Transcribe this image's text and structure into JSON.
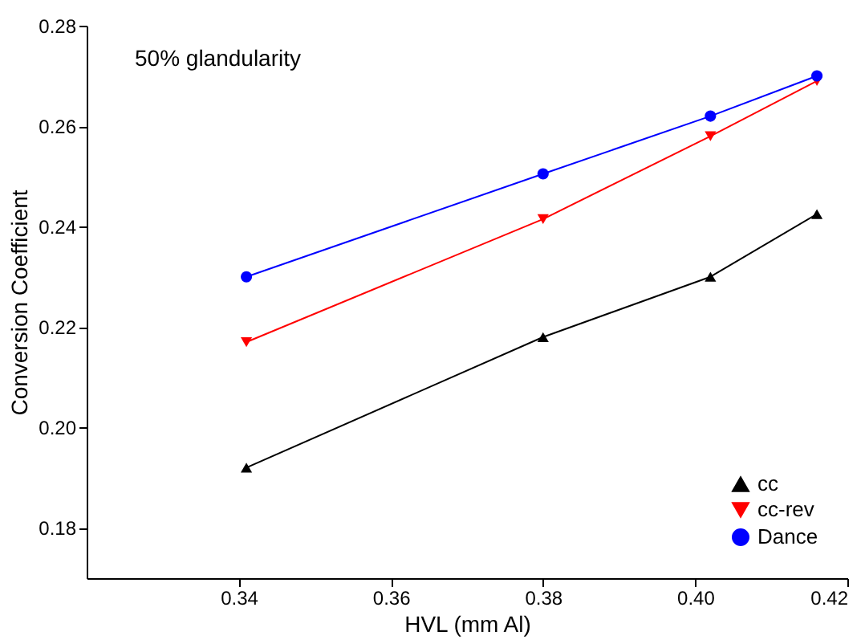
{
  "chart_data": {
    "type": "line",
    "xlabel": "HVL (mm Al)",
    "ylabel": "Conversion Coefficient",
    "x": [
      0.341,
      0.38,
      0.402,
      0.416
    ],
    "series": [
      {
        "name": "cc",
        "color": "#000000",
        "marker": "triangle",
        "values": [
          0.192,
          0.218,
          0.23,
          0.2425
        ]
      },
      {
        "name": "cc-rev",
        "color": "#ff0000",
        "marker": "triangle-down",
        "values": [
          0.217,
          0.2415,
          0.258,
          0.269
        ]
      },
      {
        "name": "Dance",
        "color": "#0000ff",
        "marker": "circle",
        "values": [
          0.23,
          0.2505,
          0.262,
          0.27
        ]
      }
    ],
    "xlim": [
      0.32,
      0.42
    ],
    "xticks": [
      0.34,
      0.36,
      0.38,
      {
        "value": 0.4,
        "label": "0.40"
      },
      0.42
    ],
    "ylim": [
      0.17,
      0.28
    ],
    "yticks": [
      0.18,
      {
        "value": 0.2,
        "label": "0.20"
      },
      0.22,
      0.24,
      0.26,
      0.28
    ],
    "grid": false,
    "legend": "bottom right",
    "line_style": "solid",
    "annotations": [
      "50% glandularity"
    ]
  }
}
